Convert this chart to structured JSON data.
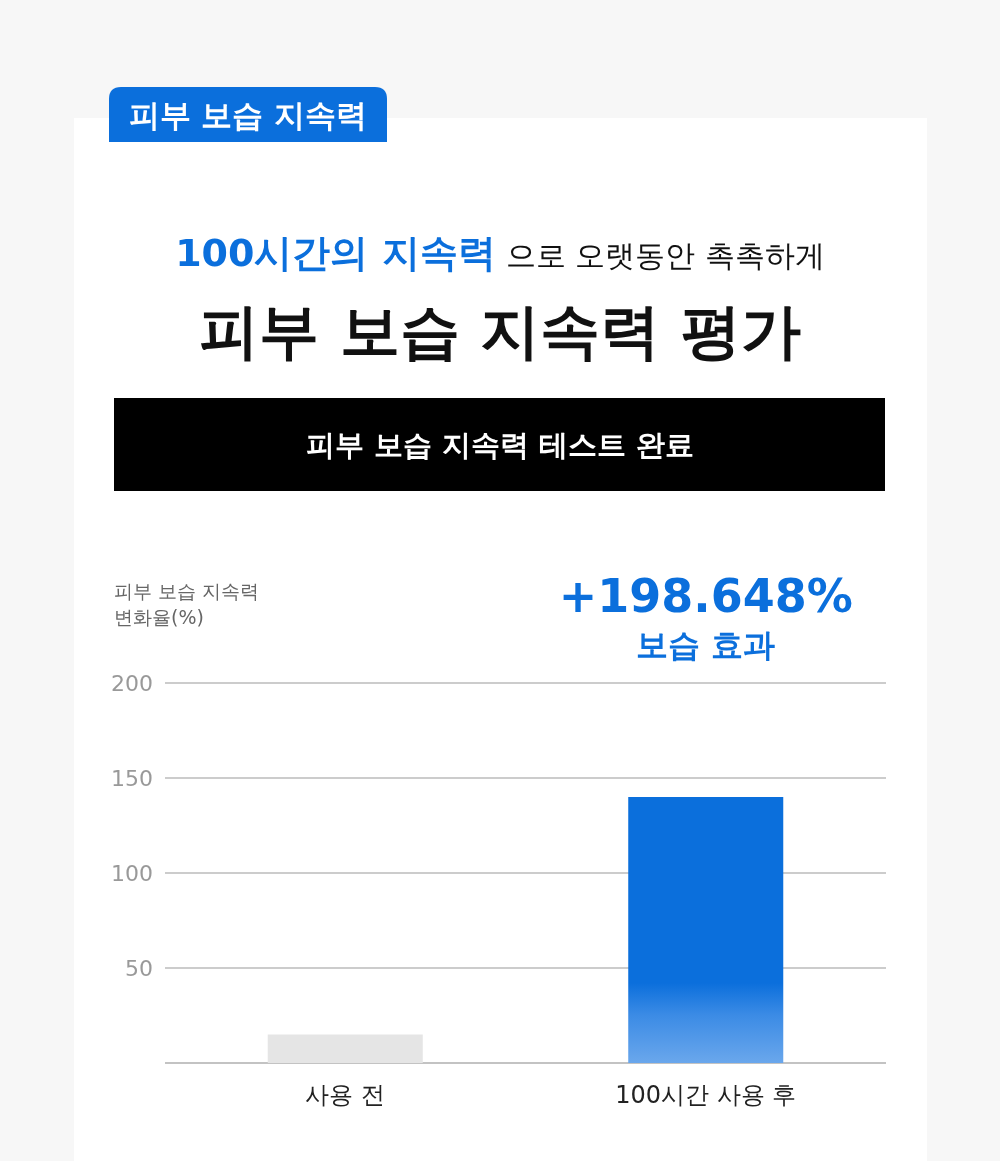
{
  "chart_data": {
    "type": "bar",
    "title": "피부 보습 지속력 평가",
    "ylabel": "피부 보습 지속력 변화율(%)",
    "categories": [
      "사용 전",
      "100시간 사용 후"
    ],
    "values": [
      15,
      140
    ],
    "colors": [
      "#e5e5e5",
      "#0b6fdc"
    ],
    "ylim": [
      0,
      200
    ],
    "yticks": [
      50,
      100,
      150,
      200
    ],
    "grid": "y",
    "annotations": [
      "피부 보습 지속력",
      "100시간의 지속력",
      "으로 오랫동안 촉촉하게",
      "피부 보습 지속력 테스트 완료",
      "+198.648%",
      "보습 효과"
    ]
  }
}
